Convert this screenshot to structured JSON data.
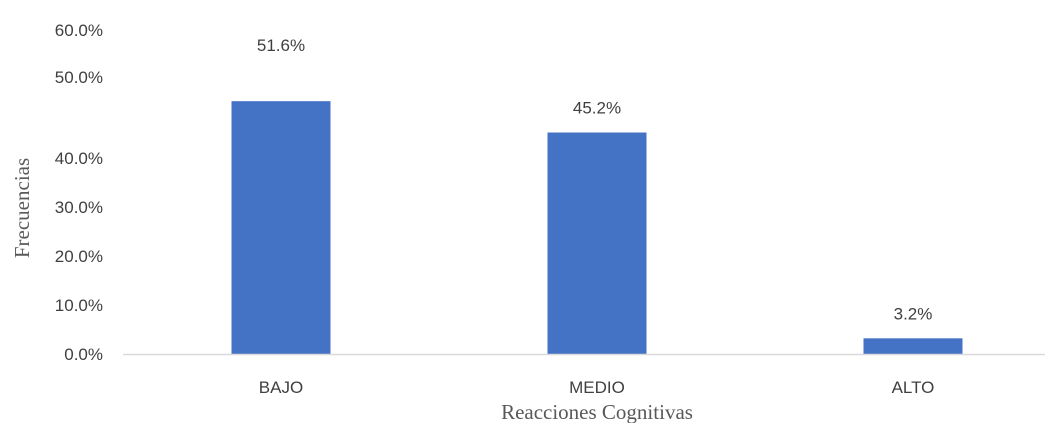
{
  "chart_data": {
    "type": "bar",
    "categories": [
      "BAJO",
      "MEDIO",
      "ALTO"
    ],
    "values": [
      51.6,
      45.2,
      3.2
    ],
    "value_labels": [
      "51.6%",
      "45.2%",
      "3.2%"
    ],
    "title": "",
    "xlabel": "Reacciones Cognitivas",
    "ylabel": "Frecuencias",
    "ylim": [
      0,
      60
    ],
    "y_ticks": [
      0,
      10,
      20,
      30,
      40,
      50,
      60
    ],
    "y_tick_labels": [
      "0.0%",
      "10.0%",
      "20.0%",
      "30.0%",
      "40.0%",
      "50.0%",
      "60.0%"
    ],
    "grid": false,
    "legend": "none",
    "colors": {
      "bar": "#4472C4",
      "axis_line": "#D9D9D9",
      "text": "#404040",
      "axis_title": "#595959"
    }
  }
}
